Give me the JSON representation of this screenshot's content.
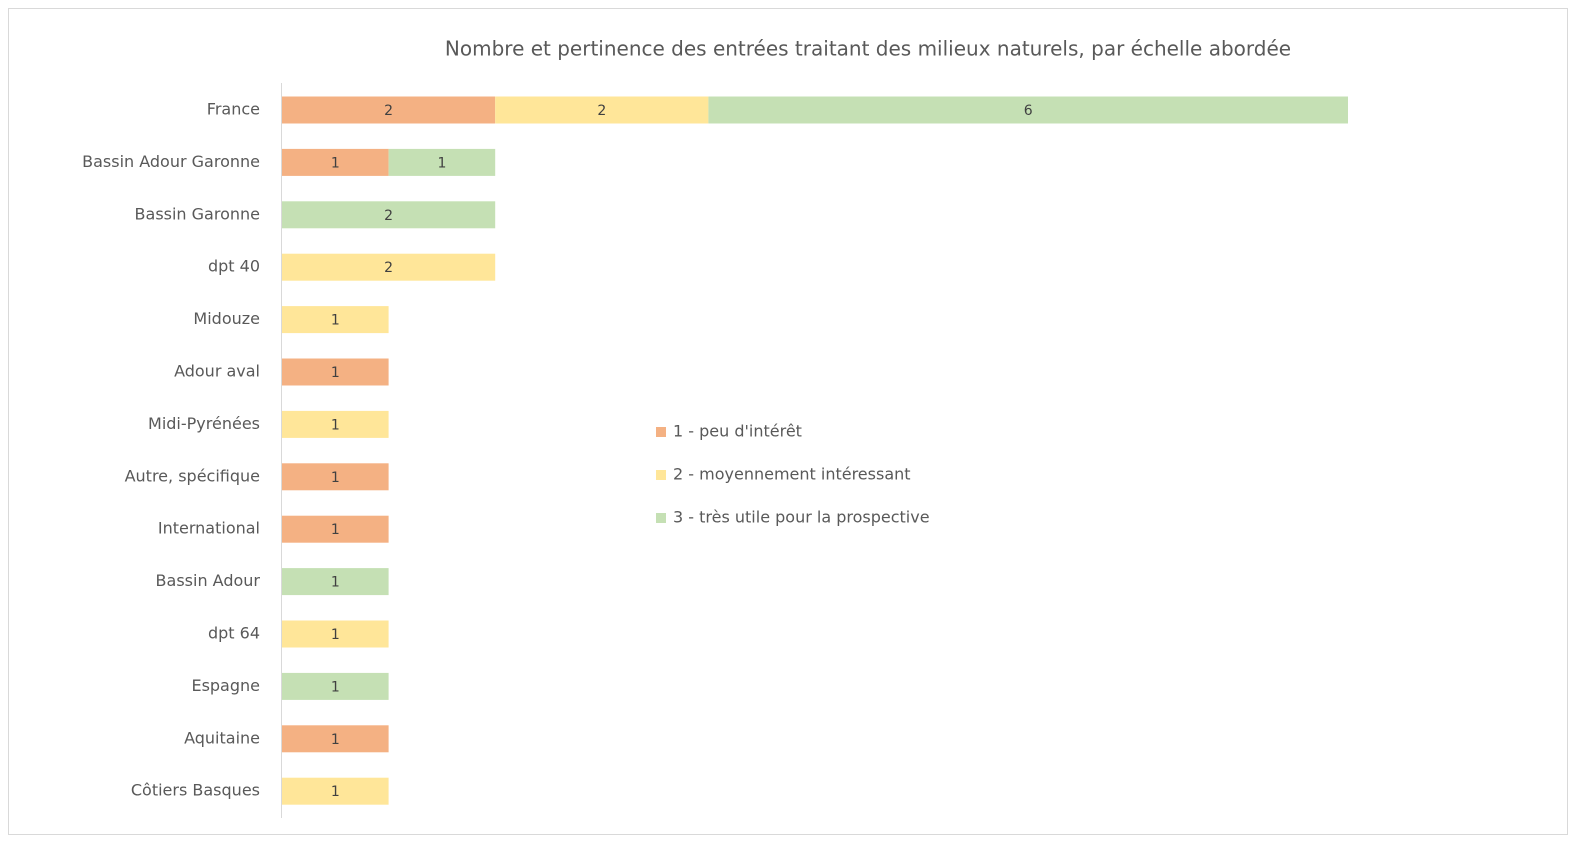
{
  "chart_data": {
    "type": "stacked-bar-horizontal",
    "title": "Nombre et pertinence des entrées traitant des milieux naturels, par échelle abordée",
    "categories": [
      "France",
      "Bassin Adour Garonne",
      "Bassin Garonne",
      "dpt 40",
      "Midouze",
      "Adour aval",
      "Midi-Pyrénées",
      "Autre, spécifique",
      "International",
      "Bassin Adour",
      "dpt 64",
      "Espagne",
      "Aquitaine",
      "Côtiers Basques"
    ],
    "series": [
      {
        "name": "1 - peu d'intérêt",
        "color": "#f4b183",
        "values": [
          2,
          1,
          null,
          null,
          null,
          1,
          null,
          1,
          1,
          null,
          null,
          null,
          1,
          null
        ]
      },
      {
        "name": "2 - moyennement intéressant",
        "color": "#ffe699",
        "values": [
          2,
          null,
          null,
          2,
          1,
          null,
          1,
          null,
          null,
          null,
          1,
          null,
          null,
          1
        ]
      },
      {
        "name": "3 - très utile pour la prospective",
        "color": "#c5e0b4",
        "values": [
          6,
          1,
          2,
          null,
          null,
          null,
          null,
          null,
          null,
          1,
          null,
          1,
          null,
          null
        ]
      }
    ],
    "legend": "center"
  }
}
